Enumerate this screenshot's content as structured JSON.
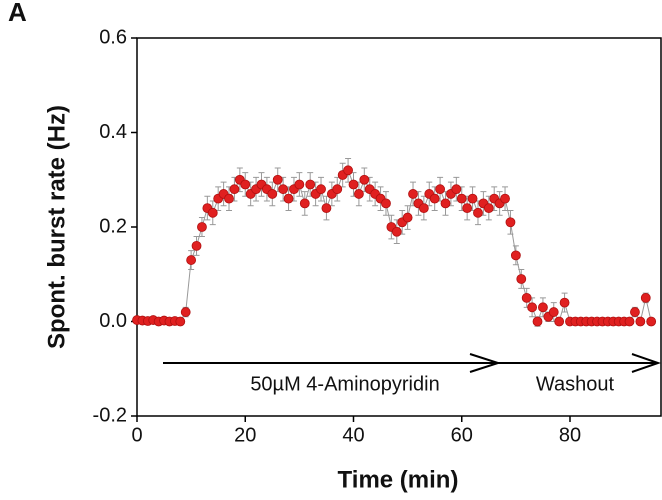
{
  "chart_data": {
    "type": "scatter",
    "panel_label": "A",
    "xlabel": "Time (min)",
    "ylabel": "Spont. burst rate (Hz)",
    "x": [
      0,
      1,
      2,
      3,
      4,
      5,
      6,
      7,
      8,
      9,
      10,
      11,
      12,
      13,
      14,
      15,
      16,
      17,
      18,
      19,
      20,
      21,
      22,
      23,
      24,
      25,
      26,
      27,
      28,
      29,
      30,
      31,
      32,
      33,
      34,
      35,
      36,
      37,
      38,
      39,
      40,
      41,
      42,
      43,
      44,
      45,
      46,
      47,
      48,
      49,
      50,
      51,
      52,
      53,
      54,
      55,
      56,
      57,
      58,
      59,
      60,
      61,
      62,
      63,
      64,
      65,
      66,
      67,
      68,
      69,
      70,
      71,
      72,
      73,
      74,
      75,
      76,
      77,
      78,
      79,
      80,
      81,
      82,
      83,
      84,
      85,
      86,
      87,
      88,
      89,
      90,
      91,
      92,
      93,
      94,
      95
    ],
    "series": [
      {
        "color": "#e02020",
        "values": [
          0.003,
          0.002,
          0.001,
          0.003,
          0,
          0.002,
          0,
          0.001,
          0,
          0.02,
          0.13,
          0.16,
          0.2,
          0.24,
          0.23,
          0.26,
          0.27,
          0.26,
          0.28,
          0.3,
          0.29,
          0.27,
          0.28,
          0.29,
          0.28,
          0.27,
          0.3,
          0.28,
          0.26,
          0.28,
          0.29,
          0.25,
          0.29,
          0.27,
          0.28,
          0.24,
          0.27,
          0.28,
          0.31,
          0.32,
          0.29,
          0.27,
          0.3,
          0.28,
          0.27,
          0.26,
          0.25,
          0.2,
          0.19,
          0.21,
          0.22,
          0.27,
          0.25,
          0.24,
          0.27,
          0.26,
          0.28,
          0.25,
          0.27,
          0.28,
          0.26,
          0.24,
          0.26,
          0.23,
          0.25,
          0.24,
          0.26,
          0.25,
          0.26,
          0.21,
          0.14,
          0.09,
          0.05,
          0.03,
          0,
          0.03,
          0.01,
          0.02,
          0,
          0.04,
          0,
          0,
          0,
          0,
          0,
          0,
          0,
          0,
          0,
          0,
          0,
          0,
          0.02,
          0,
          0.05,
          0
        ],
        "errors": [
          0.003,
          0.003,
          0.003,
          0.003,
          0.003,
          0.003,
          0.003,
          0.003,
          0.003,
          0.01,
          0.02,
          0.02,
          0.02,
          0.025,
          0.025,
          0.025,
          0.025,
          0.025,
          0.025,
          0.025,
          0.025,
          0.025,
          0.025,
          0.025,
          0.025,
          0.025,
          0.025,
          0.025,
          0.025,
          0.025,
          0.025,
          0.025,
          0.025,
          0.025,
          0.025,
          0.025,
          0.025,
          0.025,
          0.025,
          0.025,
          0.025,
          0.025,
          0.025,
          0.025,
          0.025,
          0.025,
          0.025,
          0.025,
          0.025,
          0.025,
          0.025,
          0.025,
          0.025,
          0.025,
          0.025,
          0.025,
          0.025,
          0.025,
          0.025,
          0.025,
          0.025,
          0.025,
          0.025,
          0.025,
          0.025,
          0.025,
          0.025,
          0.025,
          0.025,
          0.025,
          0.02,
          0.02,
          0.02,
          0.02,
          0.01,
          0.02,
          0.01,
          0.02,
          0.003,
          0.02,
          0.003,
          0.003,
          0.003,
          0.003,
          0.003,
          0.003,
          0.003,
          0.003,
          0.003,
          0.003,
          0.003,
          0.003,
          0.01,
          0.003,
          0.01,
          0.003
        ]
      }
    ],
    "line_color": "#999999",
    "xlim": [
      0,
      97
    ],
    "ylim": [
      -0.2,
      0.6
    ],
    "xticks": [
      0,
      20,
      40,
      60,
      80
    ],
    "yticks": [
      -0.2,
      {
        "value": 0,
        "label": "0.0"
      },
      0.2,
      0.4,
      0.6
    ],
    "annotations": [
      {
        "text": "50µM 4-Aminopyridin"
      },
      {
        "text": "Washout"
      }
    ]
  }
}
